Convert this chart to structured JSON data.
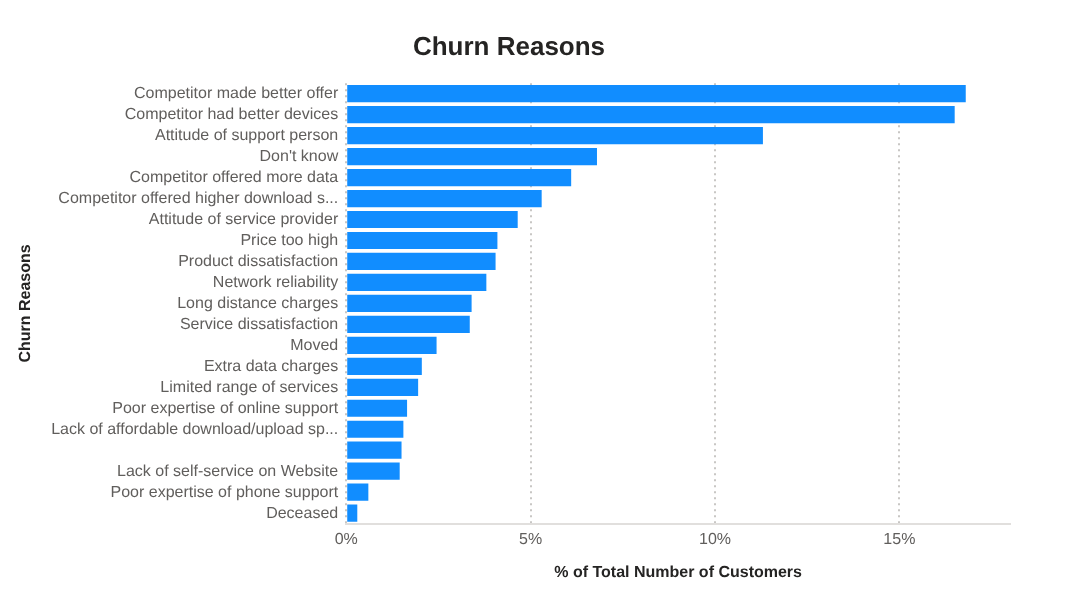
{
  "chart_data": {
    "type": "bar",
    "orientation": "horizontal",
    "title": "Churn Reasons",
    "xlabel": "% of Total Number of Customers",
    "ylabel": "Churn Reasons",
    "categories": [
      "Competitor made better offer",
      "Competitor had better devices",
      "Attitude of support person",
      "Don't know",
      "Competitor offered more data",
      "Competitor offered higher download s...",
      "Attitude of service provider",
      "Price too high",
      "Product dissatisfaction",
      "Network reliability",
      "Long distance charges",
      "Service dissatisfaction",
      "Moved",
      "Extra data charges",
      "Limited range of services",
      "Poor expertise of online support",
      "Lack of affordable download/upload sp...",
      null,
      "Lack of self-service on Website",
      "Poor expertise of phone support",
      "Deceased"
    ],
    "values": [
      16.8,
      16.5,
      11.3,
      6.8,
      6.1,
      5.3,
      4.65,
      4.1,
      4.05,
      3.8,
      3.4,
      3.35,
      2.45,
      2.05,
      1.95,
      1.65,
      1.55,
      1.5,
      1.45,
      0.6,
      0.3
    ],
    "color": "#118dff",
    "xlim": [
      0,
      18
    ],
    "xticks": [
      {
        "value": 0,
        "label": "0%"
      },
      {
        "value": 5,
        "label": "5%"
      },
      {
        "value": 10,
        "label": "10%"
      },
      {
        "value": 15,
        "label": "15%"
      }
    ],
    "grid": "x",
    "legend": false
  }
}
